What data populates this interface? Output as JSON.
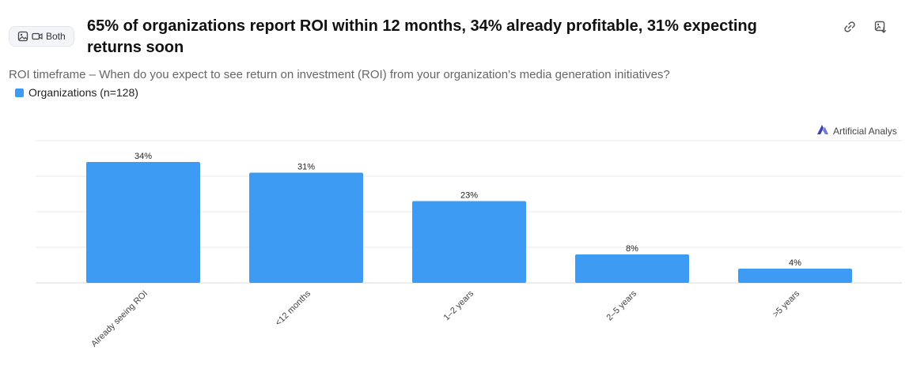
{
  "header": {
    "badge_label": "Both",
    "badge_icons": [
      "image-icon",
      "video-icon"
    ],
    "title": "65% of organizations report ROI within 12 months, 34% already profitable, 31% expecting returns soon",
    "actions": [
      "link-icon",
      "image-download-icon"
    ]
  },
  "subtitle": "ROI timeframe – When do you expect to see return on investment (ROI) from your organization's media generation initiatives?",
  "legend": {
    "label": "Organizations (n=128)",
    "color": "#3e9bf4"
  },
  "brand": {
    "label": "Artificial Analys",
    "color": "#4a55c8"
  },
  "chart_data": {
    "type": "bar",
    "categories": [
      "Already seeing ROI",
      "<12 months",
      "1–2 years",
      "2–5 years",
      ">5 years"
    ],
    "series": [
      {
        "name": "Organizations (n=128)",
        "values": [
          34,
          31,
          23,
          8,
          4
        ]
      }
    ],
    "data_labels": [
      "34%",
      "31%",
      "23%",
      "8%",
      "4%"
    ],
    "unit": "%",
    "ylim": [
      0,
      40
    ],
    "grid": true,
    "legend_position": "top-left",
    "bar_color": "#3e9bf4",
    "xlabel": "",
    "ylabel": ""
  }
}
